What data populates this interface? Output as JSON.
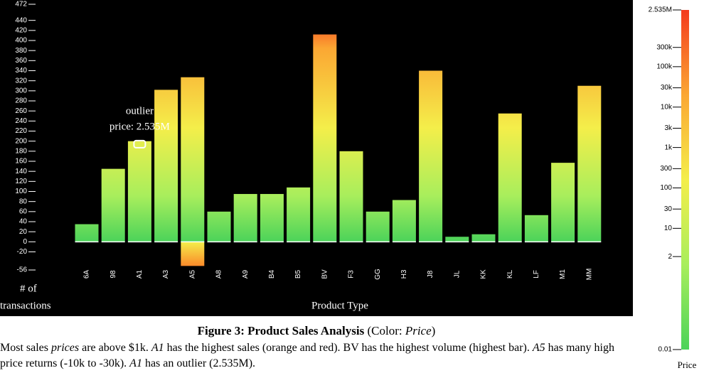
{
  "chart_data": {
    "type": "bar",
    "y_label": [
      "# of",
      "transactions"
    ],
    "x_label": "Product Type",
    "categories": [
      "6A",
      "98",
      "A1",
      "A3",
      "A5",
      "A8",
      "A9",
      "B4",
      "B5",
      "BV",
      "F3",
      "GG",
      "H3",
      "J8",
      "JL",
      "KK",
      "KL",
      "LF",
      "M1",
      "MM"
    ],
    "values": [
      35,
      145,
      200,
      302,
      327,
      60,
      95,
      95,
      108,
      412,
      180,
      60,
      83,
      340,
      10,
      15,
      255,
      53,
      157,
      310
    ],
    "returns": [
      null,
      null,
      null,
      null,
      -48,
      null,
      null,
      null,
      null,
      null,
      null,
      null,
      null,
      null,
      null,
      null,
      null,
      null,
      null,
      null
    ],
    "ylim": [
      -56,
      472
    ],
    "yticks": [
      -56,
      -20,
      0,
      20,
      40,
      60,
      80,
      100,
      120,
      140,
      160,
      180,
      200,
      220,
      240,
      260,
      280,
      300,
      320,
      340,
      360,
      380,
      400,
      420,
      440,
      472
    ],
    "annotation": {
      "lines": [
        "outlier",
        "price: 2.535M"
      ],
      "category": "A1",
      "value": 194
    },
    "color_scale": {
      "label": "Price",
      "log": true,
      "lim": [
        0.01,
        2535000
      ],
      "ticks": [
        {
          "value": 0.01,
          "label": "0.01"
        },
        2,
        10,
        30,
        100,
        300,
        {
          "value": 1000,
          "label": "1k"
        },
        {
          "value": 3000,
          "label": "3k"
        },
        {
          "value": 10000,
          "label": "10k"
        },
        {
          "value": 30000,
          "label": "30k"
        },
        {
          "value": 100000,
          "label": "100k"
        },
        {
          "value": 300000,
          "label": "300k"
        },
        {
          "value": 2535000,
          "label": "2.535M"
        }
      ],
      "colors": [
        "#4cd35a",
        "#a8ee5c",
        "#f4ee4a",
        "#fba733",
        "#f43a1e"
      ]
    }
  },
  "caption": {
    "title": "Figure 3: Product Sales Analysis",
    "note": [
      " (Color: ",
      "Price",
      ")"
    ],
    "description": [
      "Most sales ",
      "prices",
      " are above $1k. ",
      "A1",
      " has the highest sales (orange and red). BV has the highest volume (highest bar). ",
      "A5",
      " has many high price returns (-10k to -30k). ",
      "A1",
      " has an outlier (2.535M)."
    ]
  }
}
